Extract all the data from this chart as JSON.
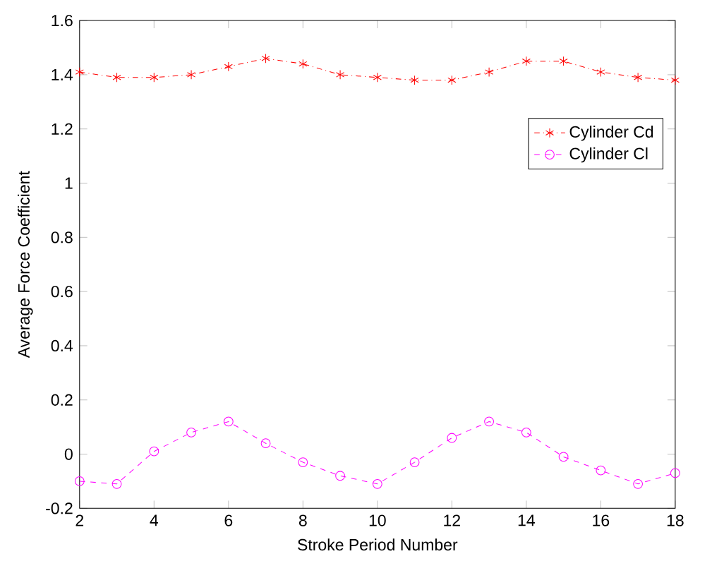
{
  "chart_data": {
    "type": "line",
    "xlabel": "Stroke Period Number",
    "ylabel": "Average Force Coefficient",
    "x": [
      2,
      3,
      4,
      5,
      6,
      7,
      8,
      9,
      10,
      11,
      12,
      13,
      14,
      15,
      16,
      17,
      18
    ],
    "series": [
      {
        "name": "Cylinder Cd",
        "color": "#ff0000",
        "marker": "cross",
        "line_style": "dashdot",
        "values": [
          1.41,
          1.39,
          1.39,
          1.4,
          1.43,
          1.46,
          1.44,
          1.4,
          1.39,
          1.38,
          1.38,
          1.41,
          1.45,
          1.45,
          1.41,
          1.39,
          1.38
        ]
      },
      {
        "name": "Cylinder Cl",
        "color": "#ff00ff",
        "marker": "circle",
        "line_style": "dashed",
        "values": [
          -0.1,
          -0.11,
          0.01,
          0.08,
          0.12,
          0.04,
          -0.03,
          -0.08,
          -0.11,
          -0.03,
          0.06,
          0.12,
          0.08,
          -0.01,
          -0.06,
          -0.11,
          -0.07
        ]
      }
    ],
    "xlim": [
      2,
      18
    ],
    "ylim": [
      -0.2,
      1.6
    ],
    "xticks": [
      2,
      4,
      6,
      8,
      10,
      12,
      14,
      16,
      18
    ],
    "yticks": [
      -0.2,
      0,
      0.2,
      0.4,
      0.6,
      0.8,
      1,
      1.2,
      1.4,
      1.6
    ],
    "grid": false,
    "legend": "top right"
  }
}
